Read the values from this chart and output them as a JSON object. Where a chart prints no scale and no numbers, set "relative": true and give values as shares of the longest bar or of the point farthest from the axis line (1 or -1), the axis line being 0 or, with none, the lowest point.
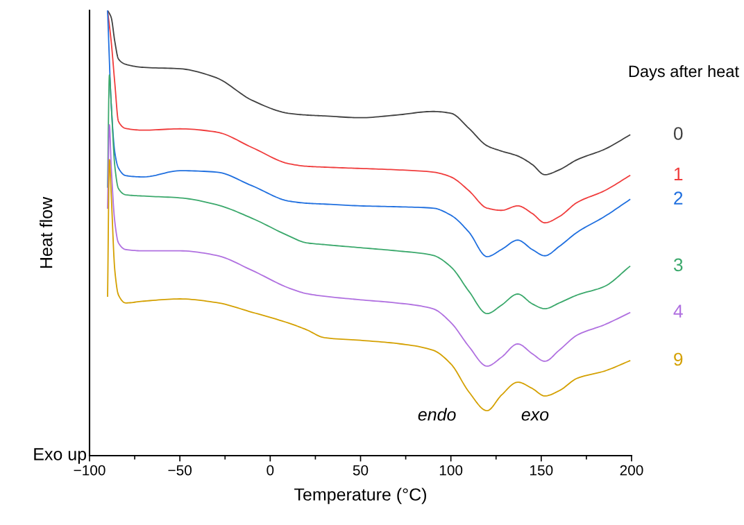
{
  "chart_data": {
    "type": "line",
    "relative": true,
    "xlabel": "Temperature (°C)",
    "ylabel": "Heat flow",
    "legend_title": "Days after heat",
    "xlim": [
      -100,
      200
    ],
    "xticks": [
      {
        "value": -100,
        "label": "−100"
      },
      {
        "value": -50,
        "label": "−50"
      },
      0,
      50,
      100,
      150,
      200
    ],
    "grid": false,
    "marker": "none",
    "line_style": "solid",
    "annotations": [
      "Exo up",
      "endo",
      "exo"
    ],
    "series": [
      {
        "name": "0",
        "color": "#404040",
        "x": [
          -90,
          -88,
          -86,
          -84,
          -80,
          -70,
          -50,
          -30,
          -10,
          10,
          20,
          30,
          50,
          70,
          90,
          100,
          110,
          120,
          128,
          137,
          145,
          152,
          160,
          170,
          185,
          199
        ],
        "values": [
          1.0,
          0.984,
          0.93,
          0.891,
          0.879,
          0.872,
          0.869,
          0.849,
          0.798,
          0.769,
          0.765,
          0.763,
          0.759,
          0.765,
          0.773,
          0.769,
          0.735,
          0.696,
          0.684,
          0.673,
          0.654,
          0.631,
          0.642,
          0.665,
          0.688,
          0.72
        ]
      },
      {
        "name": "1",
        "color": "#f03c3c",
        "x": [
          -90,
          -88,
          -86,
          -84,
          -80,
          -70,
          -50,
          -30,
          -10,
          10,
          20,
          30,
          50,
          70,
          90,
          100,
          110,
          120,
          128,
          137,
          145,
          152,
          160,
          170,
          185,
          199
        ],
        "values": [
          1.0,
          0.93,
          0.836,
          0.751,
          0.735,
          0.731,
          0.734,
          0.727,
          0.692,
          0.656,
          0.65,
          0.648,
          0.645,
          0.642,
          0.637,
          0.626,
          0.595,
          0.556,
          0.551,
          0.561,
          0.544,
          0.523,
          0.537,
          0.569,
          0.595,
          0.629
        ]
      },
      {
        "name": "2",
        "color": "#1f6fdf",
        "x": [
          -90,
          -88,
          -86,
          -84,
          -80,
          -70,
          -50,
          -30,
          -10,
          10,
          20,
          30,
          50,
          70,
          90,
          100,
          110,
          120,
          128,
          137,
          145,
          152,
          160,
          170,
          185,
          199
        ],
        "values": [
          1.0,
          0.79,
          0.681,
          0.646,
          0.629,
          0.626,
          0.64,
          0.637,
          0.606,
          0.572,
          0.567,
          0.565,
          0.561,
          0.559,
          0.556,
          0.54,
          0.502,
          0.447,
          0.463,
          0.484,
          0.463,
          0.449,
          0.47,
          0.502,
          0.537,
          0.575
        ]
      },
      {
        "name": "3",
        "color": "#3aa86b",
        "x": [
          -90,
          -89,
          -88,
          -86,
          -84,
          -80,
          -70,
          -50,
          -30,
          -10,
          10,
          20,
          30,
          50,
          70,
          90,
          100,
          110,
          120,
          128,
          137,
          145,
          152,
          160,
          170,
          185,
          199
        ],
        "values": [
          0.603,
          0.855,
          0.79,
          0.65,
          0.6,
          0.586,
          0.583,
          0.579,
          0.564,
          0.533,
          0.494,
          0.478,
          0.474,
          0.467,
          0.46,
          0.45,
          0.424,
          0.369,
          0.319,
          0.338,
          0.363,
          0.341,
          0.33,
          0.343,
          0.361,
          0.38,
          0.425
        ]
      },
      {
        "name": "4",
        "color": "#b070e0",
        "x": [
          -90,
          -89,
          -88,
          -86,
          -84,
          -80,
          -70,
          -50,
          -30,
          -10,
          10,
          20,
          30,
          50,
          70,
          90,
          100,
          110,
          120,
          128,
          137,
          145,
          152,
          160,
          170,
          185,
          199
        ],
        "values": [
          0.556,
          0.743,
          0.65,
          0.525,
          0.478,
          0.463,
          0.46,
          0.46,
          0.45,
          0.416,
          0.377,
          0.364,
          0.358,
          0.35,
          0.343,
          0.33,
          0.299,
          0.245,
          0.201,
          0.221,
          0.251,
          0.229,
          0.212,
          0.237,
          0.271,
          0.294,
          0.321
        ]
      },
      {
        "name": "9",
        "color": "#d4a000",
        "x": [
          -90,
          -89,
          -88,
          -86,
          -84,
          -80,
          -70,
          -50,
          -30,
          -10,
          10,
          20,
          30,
          50,
          70,
          90,
          100,
          110,
          120,
          128,
          137,
          145,
          152,
          160,
          170,
          185,
          199
        ],
        "values": [
          0.358,
          0.665,
          0.587,
          0.416,
          0.361,
          0.343,
          0.347,
          0.352,
          0.344,
          0.322,
          0.298,
          0.283,
          0.265,
          0.259,
          0.252,
          0.237,
          0.206,
          0.143,
          0.101,
          0.136,
          0.165,
          0.151,
          0.134,
          0.146,
          0.174,
          0.19,
          0.213
        ]
      }
    ]
  }
}
